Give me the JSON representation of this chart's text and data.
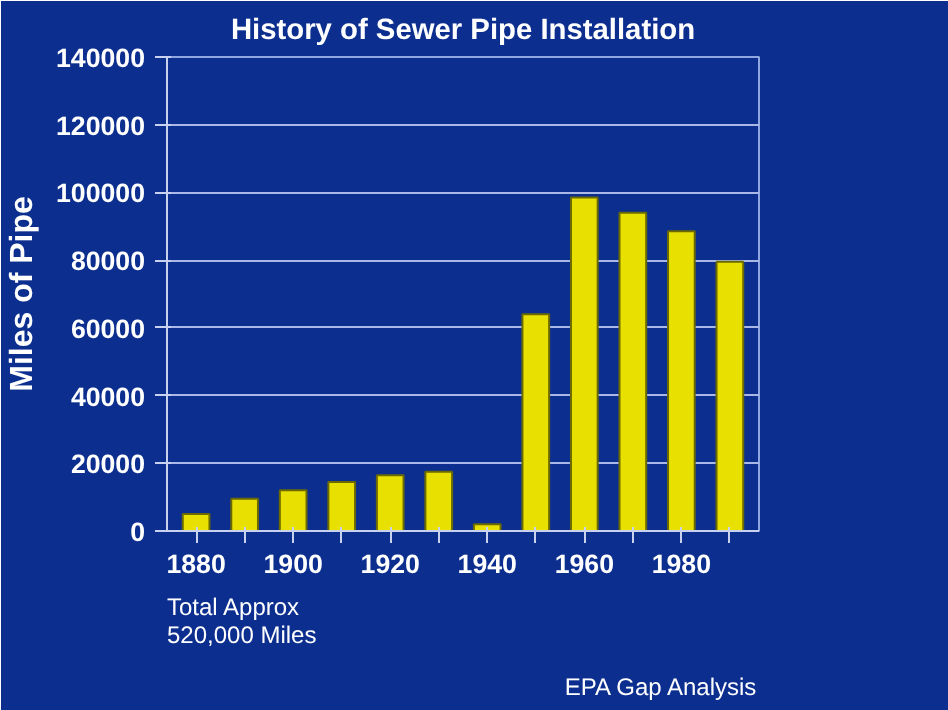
{
  "chart_data": {
    "type": "bar",
    "title": "History of Sewer Pipe Installation",
    "ylabel": "Miles of Pipe",
    "categories": [
      "1880",
      null,
      "1900",
      null,
      "1920",
      null,
      "1940",
      null,
      "1960",
      null,
      "1980",
      null
    ],
    "values": [
      5000,
      9500,
      12000,
      14500,
      16500,
      17500,
      2000,
      64000,
      98500,
      94000,
      88500,
      79500
    ],
    "color": "#e8e000",
    "ylim": [
      0,
      140000
    ],
    "yticks": [
      0,
      20000,
      40000,
      60000,
      80000,
      100000,
      120000,
      140000
    ],
    "grid": "y",
    "annotations": [
      "Total Approx\n520,000 Miles",
      "EPA Gap Analysis"
    ]
  }
}
